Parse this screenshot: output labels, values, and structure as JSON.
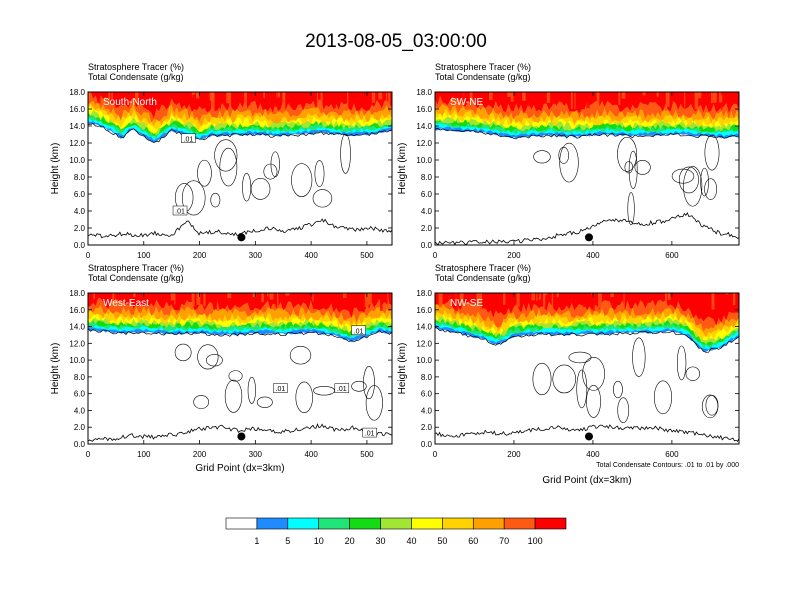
{
  "title": "2013-08-05_03:00:00",
  "colors": {
    "levels": [
      "#ffffff",
      "#1e8cff",
      "#00ffff",
      "#1ee678",
      "#14dc14",
      "#a0e632",
      "#ffff00",
      "#ffd200",
      "#ffa000",
      "#ff5a14",
      "#ff0000"
    ],
    "contour": "#000000",
    "marker": "#000000"
  },
  "chart_data": [
    {
      "type": "heatmap",
      "id": "south-north",
      "label": "South-North",
      "header_line1": "Stratosphere Tracer   (%)",
      "header_line2": "Total Condensate   (g/kg)",
      "ylabel": "Height (km)",
      "xlabel": "",
      "xlim": [
        0,
        545
      ],
      "ylim": [
        0,
        18
      ],
      "xticks": [
        0,
        100,
        200,
        300,
        400,
        500
      ],
      "yticks": [
        "0.0",
        "2.0",
        "4.0",
        "6.0",
        "8.0",
        "10.0",
        "12.0",
        "14.0",
        "16.0",
        "18.0"
      ],
      "marker_x": 275,
      "contour_labels": [
        {
          "x": 180,
          "y": 12.5,
          "text": ".01"
        },
        {
          "x": 165,
          "y": 4.0,
          "text": ".01"
        }
      ],
      "terrain": [
        [
          0,
          1.2
        ],
        [
          30,
          1.0
        ],
        [
          60,
          1.3
        ],
        [
          90,
          1.1
        ],
        [
          120,
          1.4
        ],
        [
          150,
          1.2
        ],
        [
          180,
          2.8
        ],
        [
          200,
          1.3
        ],
        [
          230,
          1.6
        ],
        [
          260,
          1.2
        ],
        [
          290,
          1.5
        ],
        [
          320,
          2.0
        ],
        [
          350,
          1.6
        ],
        [
          380,
          2.0
        ],
        [
          400,
          2.4
        ],
        [
          420,
          3.0
        ],
        [
          440,
          2.2
        ],
        [
          470,
          1.8
        ],
        [
          500,
          2.0
        ],
        [
          545,
          1.6
        ]
      ],
      "tropopause": [
        [
          0,
          14.3
        ],
        [
          20,
          14.0
        ],
        [
          40,
          13.4
        ],
        [
          60,
          12.5
        ],
        [
          80,
          13.6
        ],
        [
          100,
          12.8
        ],
        [
          120,
          12.0
        ],
        [
          150,
          13.4
        ],
        [
          180,
          12.9
        ],
        [
          200,
          12.3
        ],
        [
          220,
          12.8
        ],
        [
          260,
          12.9
        ],
        [
          300,
          13.0
        ],
        [
          340,
          12.8
        ],
        [
          380,
          13.0
        ],
        [
          420,
          13.2
        ],
        [
          460,
          12.9
        ],
        [
          500,
          13.0
        ],
        [
          545,
          13.4
        ]
      ]
    },
    {
      "type": "heatmap",
      "id": "sw-ne",
      "label": "SW-NE",
      "header_line1": "Stratosphere Tracer   (%)",
      "header_line2": "Total Condensate   (g/kg)",
      "ylabel": "Height (km)",
      "xlabel": "",
      "xlim": [
        0,
        770
      ],
      "ylim": [
        0,
        18
      ],
      "xticks": [
        0,
        200,
        400,
        600
      ],
      "yticks": [
        "0.0",
        "2.0",
        "4.0",
        "6.0",
        "8.0",
        "10.0",
        "12.0",
        "14.0",
        "16.0",
        "18.0"
      ],
      "marker_x": 390,
      "contour_labels": [],
      "terrain": [
        [
          0,
          0.2
        ],
        [
          100,
          0.3
        ],
        [
          200,
          0.4
        ],
        [
          280,
          0.8
        ],
        [
          320,
          1.2
        ],
        [
          370,
          1.6
        ],
        [
          420,
          2.6
        ],
        [
          460,
          3.0
        ],
        [
          520,
          2.4
        ],
        [
          580,
          2.8
        ],
        [
          640,
          3.6
        ],
        [
          680,
          2.2
        ],
        [
          720,
          1.4
        ],
        [
          770,
          1.0
        ]
      ],
      "tropopause": [
        [
          0,
          13.6
        ],
        [
          60,
          13.4
        ],
        [
          100,
          13.3
        ],
        [
          150,
          13.0
        ],
        [
          200,
          12.6
        ],
        [
          250,
          12.8
        ],
        [
          300,
          12.9
        ],
        [
          350,
          12.7
        ],
        [
          400,
          12.9
        ],
        [
          450,
          13.0
        ],
        [
          500,
          12.8
        ],
        [
          560,
          12.9
        ],
        [
          620,
          13.0
        ],
        [
          680,
          12.8
        ],
        [
          720,
          12.6
        ],
        [
          770,
          12.8
        ]
      ]
    },
    {
      "type": "heatmap",
      "id": "west-east",
      "label": "West-East",
      "header_line1": "Stratosphere Tracer   (%)",
      "header_line2": "Total Condensate   (g/kg)",
      "ylabel": "Height (km)",
      "xlabel": "Grid Point (dx=3km)",
      "xlim": [
        0,
        545
      ],
      "ylim": [
        0,
        18
      ],
      "xticks": [
        0,
        100,
        200,
        300,
        400,
        500
      ],
      "yticks": [
        "0.0",
        "2.0",
        "4.0",
        "6.0",
        "8.0",
        "10.0",
        "12.0",
        "14.0",
        "16.0",
        "18.0"
      ],
      "marker_x": 275,
      "contour_labels": [
        {
          "x": 485,
          "y": 13.5,
          "text": ".01"
        },
        {
          "x": 345,
          "y": 6.6,
          "text": ".01"
        },
        {
          "x": 455,
          "y": 6.6,
          "text": ".01"
        },
        {
          "x": 505,
          "y": 1.3,
          "text": ".01"
        }
      ],
      "terrain": [
        [
          0,
          0.4
        ],
        [
          40,
          0.6
        ],
        [
          80,
          1.0
        ],
        [
          120,
          0.8
        ],
        [
          160,
          1.2
        ],
        [
          200,
          1.8
        ],
        [
          240,
          2.0
        ],
        [
          270,
          1.6
        ],
        [
          300,
          1.8
        ],
        [
          340,
          1.4
        ],
        [
          380,
          1.8
        ],
        [
          420,
          2.2
        ],
        [
          450,
          1.6
        ],
        [
          480,
          2.0
        ],
        [
          510,
          1.4
        ],
        [
          545,
          1.0
        ]
      ],
      "tropopause": [
        [
          0,
          13.6
        ],
        [
          30,
          13.4
        ],
        [
          60,
          13.2
        ],
        [
          100,
          13.3
        ],
        [
          150,
          13.1
        ],
        [
          200,
          13.2
        ],
        [
          250,
          13.0
        ],
        [
          300,
          13.2
        ],
        [
          350,
          13.1
        ],
        [
          400,
          13.3
        ],
        [
          440,
          13.0
        ],
        [
          470,
          12.2
        ],
        [
          500,
          12.8
        ],
        [
          520,
          13.4
        ],
        [
          545,
          13.2
        ]
      ]
    },
    {
      "type": "heatmap",
      "id": "nw-se",
      "label": "NW-SE",
      "header_line1": "Stratosphere Tracer   (%)",
      "header_line2": "Total Condensate   (g/kg)",
      "ylabel": "Height (km)",
      "xlabel": "Grid Point (dx=3km)",
      "footnote": "Total Condensate Contours: .01 to .01 by .000",
      "xlim": [
        0,
        770
      ],
      "ylim": [
        0,
        18
      ],
      "xticks": [
        0,
        200,
        400,
        600
      ],
      "yticks": [
        "0.0",
        "2.0",
        "4.0",
        "6.0",
        "8.0",
        "10.0",
        "12.0",
        "14.0",
        "16.0",
        "18.0"
      ],
      "marker_x": 390,
      "contour_labels": [],
      "terrain": [
        [
          0,
          1.2
        ],
        [
          60,
          1.0
        ],
        [
          120,
          1.4
        ],
        [
          180,
          1.2
        ],
        [
          240,
          1.6
        ],
        [
          300,
          2.0
        ],
        [
          360,
          1.6
        ],
        [
          420,
          2.2
        ],
        [
          480,
          1.8
        ],
        [
          540,
          2.0
        ],
        [
          600,
          1.6
        ],
        [
          660,
          1.2
        ],
        [
          720,
          0.8
        ],
        [
          770,
          0.4
        ]
      ],
      "tropopause": [
        [
          0,
          13.8
        ],
        [
          60,
          13.2
        ],
        [
          120,
          12.5
        ],
        [
          160,
          11.8
        ],
        [
          200,
          12.8
        ],
        [
          260,
          13.1
        ],
        [
          320,
          13.0
        ],
        [
          400,
          13.1
        ],
        [
          480,
          13.2
        ],
        [
          560,
          13.3
        ],
        [
          600,
          13.4
        ],
        [
          640,
          12.8
        ],
        [
          680,
          11.0
        ],
        [
          720,
          11.4
        ],
        [
          770,
          12.8
        ]
      ]
    }
  ],
  "colorbar": {
    "labels": [
      "1",
      "5",
      "10",
      "20",
      "30",
      "40",
      "50",
      "60",
      "70",
      "100"
    ]
  }
}
